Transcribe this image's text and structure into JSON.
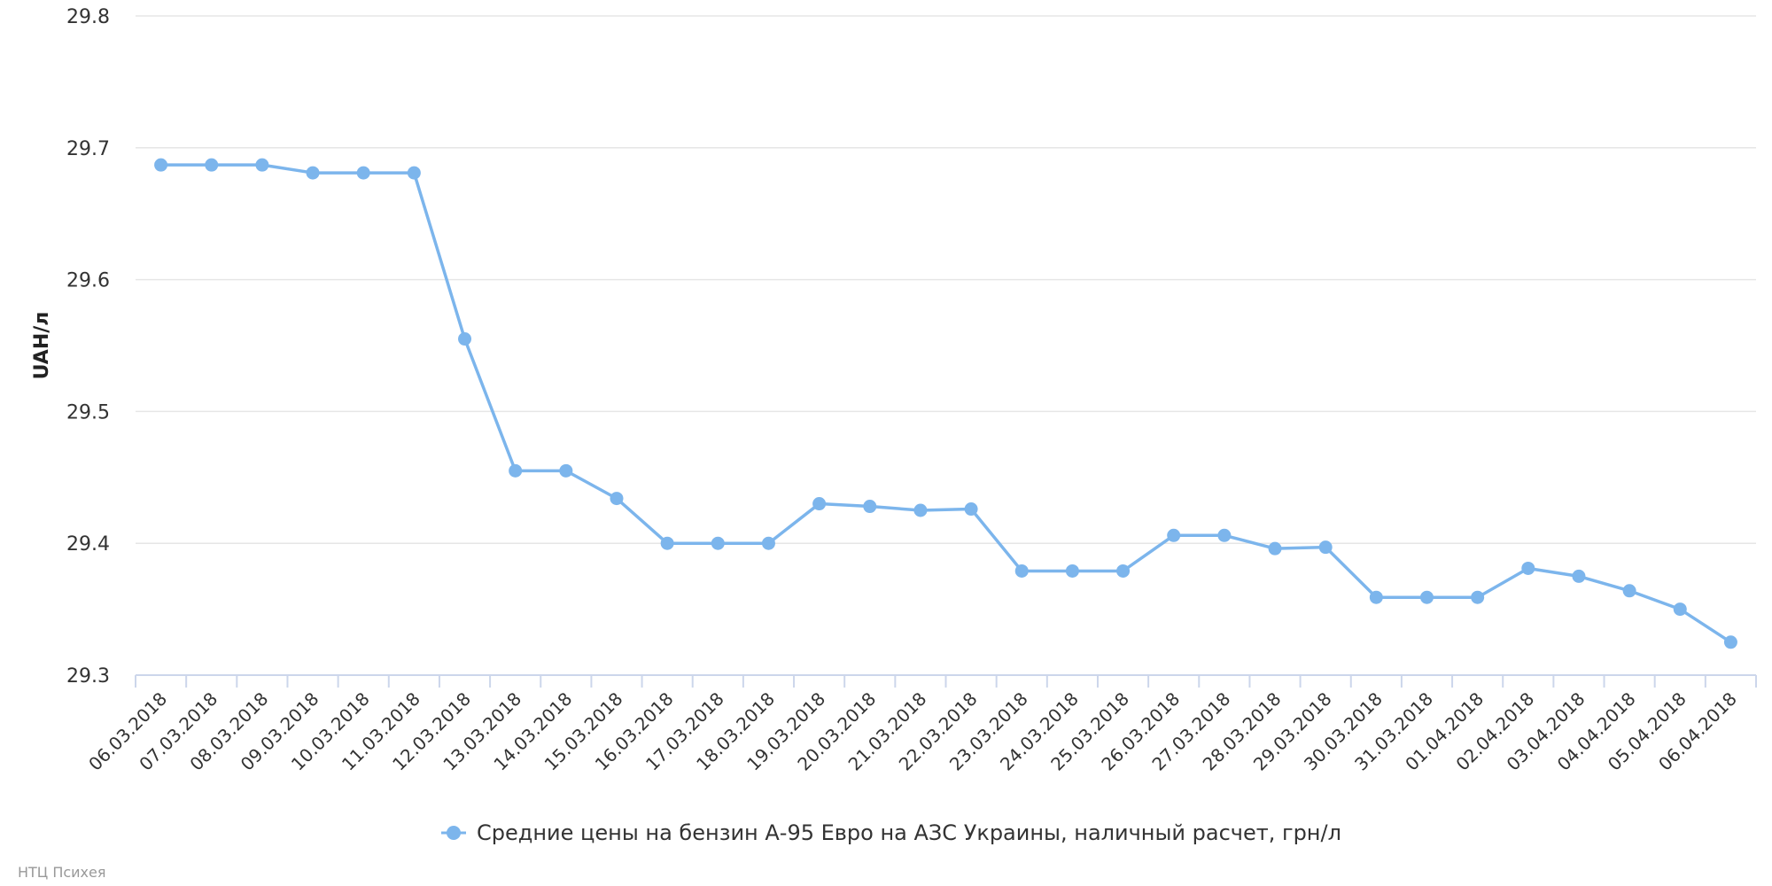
{
  "chart_data": {
    "type": "line",
    "x": [
      "06.03.2018",
      "07.03.2018",
      "08.03.2018",
      "09.03.2018",
      "10.03.2018",
      "11.03.2018",
      "12.03.2018",
      "13.03.2018",
      "14.03.2018",
      "15.03.2018",
      "16.03.2018",
      "17.03.2018",
      "18.03.2018",
      "19.03.2018",
      "20.03.2018",
      "21.03.2018",
      "22.03.2018",
      "23.03.2018",
      "24.03.2018",
      "25.03.2018",
      "26.03.2018",
      "27.03.2018",
      "28.03.2018",
      "29.03.2018",
      "30.03.2018",
      "31.03.2018",
      "01.04.2018",
      "02.04.2018",
      "03.04.2018",
      "04.04.2018",
      "05.04.2018",
      "06.04.2018"
    ],
    "series": [
      {
        "name": "Средние цены на бензин А-95 Евро на АЗС Украины, наличный расчет, грн/л",
        "color": "#7cb5ec",
        "values": [
          29.687,
          29.687,
          29.687,
          29.681,
          29.681,
          29.681,
          29.555,
          29.455,
          29.455,
          29.434,
          29.4,
          29.4,
          29.4,
          29.43,
          29.428,
          29.425,
          29.426,
          29.379,
          29.379,
          29.379,
          29.406,
          29.406,
          29.396,
          29.397,
          29.359,
          29.359,
          29.359,
          29.381,
          29.375,
          29.364,
          29.35,
          29.325
        ]
      }
    ],
    "ylabel": "UAH/л",
    "ylim": [
      29.3,
      29.8
    ],
    "yticks": [
      "29.3",
      "29.4",
      "29.5",
      "29.6",
      "29.7",
      "29.8"
    ],
    "grid": true,
    "legend_position": "bottom-center"
  },
  "credit": "НТЦ Психея"
}
